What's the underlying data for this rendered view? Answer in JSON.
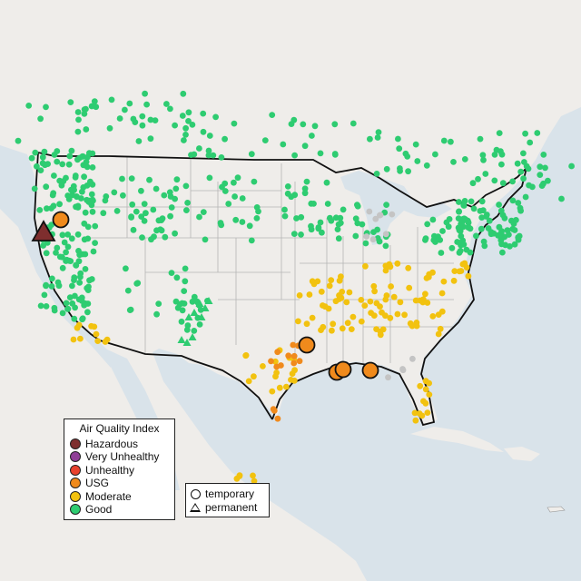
{
  "legend": {
    "title": "Air Quality Index",
    "categories": [
      {
        "label": "Hazardous",
        "color": "#7e2e2e"
      },
      {
        "label": "Very Unhealthy",
        "color": "#8f3f97"
      },
      {
        "label": "Unhealthy",
        "color": "#e8412d"
      },
      {
        "label": "USG",
        "color": "#f08a1c"
      },
      {
        "label": "Moderate",
        "color": "#f2c20f"
      },
      {
        "label": "Good",
        "color": "#2ecc71"
      }
    ]
  },
  "site_legend": {
    "temporary": "temporary",
    "permanent": "permanent"
  },
  "colors": {
    "water": "#d9e3ea",
    "land": "#efedea",
    "mexico": "#e9e6e1",
    "border": "#111111",
    "state_lines": "#b5b5b5",
    "no_data": "#c4c4c4"
  }
}
